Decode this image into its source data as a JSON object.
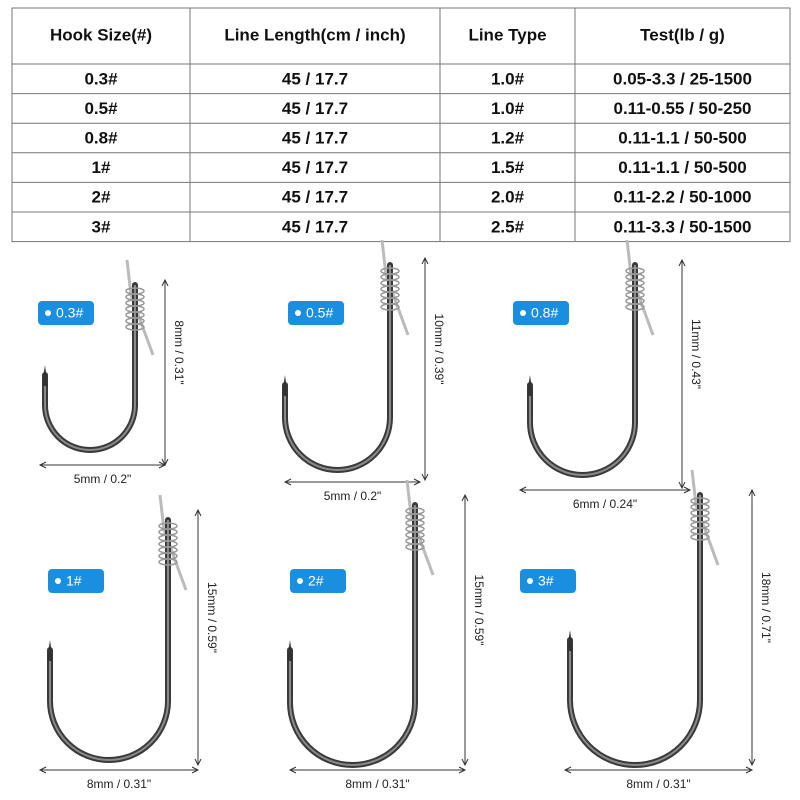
{
  "table": {
    "headers": [
      "Hook Size(#)",
      "Line Length(cm / inch)",
      "Line Type",
      "Test(lb / g)"
    ],
    "rows": [
      [
        "0.3#",
        "45 / 17.7",
        "1.0#",
        "0.05-3.3 / 25-1500"
      ],
      [
        "0.5#",
        "45 / 17.7",
        "1.0#",
        "0.11-0.55 / 50-250"
      ],
      [
        "0.8#",
        "45 / 17.7",
        "1.2#",
        "0.11-1.1 / 50-500"
      ],
      [
        "1#",
        "45 / 17.7",
        "1.5#",
        "0.11-1.1 / 50-500"
      ],
      [
        "2#",
        "45 / 17.7",
        "2.0#",
        "0.11-2.2 / 50-1000"
      ],
      [
        "3#",
        "45 / 17.7",
        "2.5#",
        "0.11-3.3 / 50-1500"
      ]
    ]
  },
  "hooks": [
    {
      "label": "0.3#",
      "height": "8mm / 0.31\"",
      "width": "5mm / 0.2\""
    },
    {
      "label": "0.5#",
      "height": "10mm / 0.39\"",
      "width": "5mm / 0.2\""
    },
    {
      "label": "0.8#",
      "height": "11mm / 0.43\"",
      "width": "6mm / 0.24\""
    },
    {
      "label": "1#",
      "height": "15mm / 0.59\"",
      "width": "8mm / 0.31\""
    },
    {
      "label": "2#",
      "height": "15mm / 0.59\"",
      "width": "8mm / 0.31\""
    },
    {
      "label": "3#",
      "height": "18mm / 0.71\"",
      "width": "8mm / 0.31\""
    }
  ]
}
